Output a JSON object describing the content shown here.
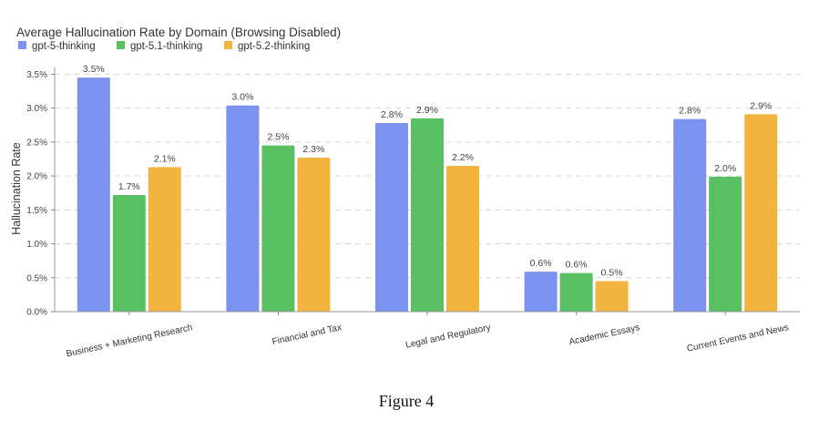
{
  "chart_data": {
    "type": "bar",
    "title": "Average Hallucination Rate by Domain (Browsing Disabled)",
    "ylabel": "Hallucination Rate",
    "xlabel": "",
    "ylim": [
      0,
      3.6
    ],
    "yticks": [
      0,
      0.5,
      1.0,
      1.5,
      2.0,
      2.5,
      3.0,
      3.5
    ],
    "ytick_labels": [
      "0.0%",
      "0.5%",
      "1.0%",
      "1.5%",
      "2.0%",
      "2.5%",
      "3.0%",
      "3.5%"
    ],
    "grid": true,
    "legend_position": "top-left",
    "categories": [
      "Business + Marketing Research",
      "Financial and Tax",
      "Legal and Regulatory",
      "Academic Essays",
      "Current Events and News"
    ],
    "series": [
      {
        "name": "gpt-5-thinking",
        "color": "#7b93ef",
        "values": [
          3.45,
          3.04,
          2.78,
          0.59,
          2.84
        ],
        "labels": [
          "3.5%",
          "3.0%",
          "2.8%",
          "0.6%",
          "2.8%"
        ]
      },
      {
        "name": "gpt-5.1-thinking",
        "color": "#58c063",
        "values": [
          1.72,
          2.45,
          2.85,
          0.57,
          1.99
        ],
        "labels": [
          "1.7%",
          "2.5%",
          "2.9%",
          "0.6%",
          "2.0%"
        ]
      },
      {
        "name": "gpt-5.2-thinking",
        "color": "#f3b33f",
        "values": [
          2.13,
          2.27,
          2.15,
          0.45,
          2.91
        ],
        "labels": [
          "2.1%",
          "2.3%",
          "2.2%",
          "0.5%",
          "2.9%"
        ]
      }
    ]
  },
  "figure_caption": "Figure 4"
}
